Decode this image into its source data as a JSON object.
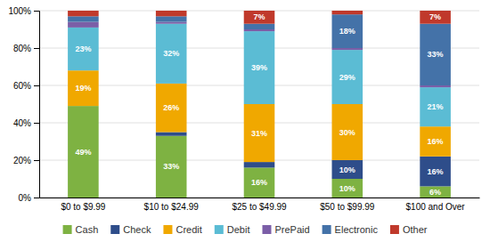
{
  "chart_data": {
    "type": "bar",
    "stacked": true,
    "categories": [
      "$0 to $9.99",
      "$10 to $24.99",
      "$25 to $49.99",
      "$50 to $99.99",
      "$100 and Over"
    ],
    "series": [
      {
        "name": "Cash",
        "color": "#7eb242",
        "values": [
          49,
          33,
          16,
          10,
          6
        ],
        "value_labels": [
          "49%",
          "33%",
          "16%",
          "10%",
          "6%"
        ]
      },
      {
        "name": "Check",
        "color": "#2e4d8a",
        "values": [
          0,
          2,
          3,
          10,
          16
        ],
        "value_labels": [
          null,
          null,
          null,
          "10%",
          "16%"
        ]
      },
      {
        "name": "Credit",
        "color": "#f0a800",
        "values": [
          19,
          26,
          31,
          30,
          16
        ],
        "value_labels": [
          "19%",
          "26%",
          "31%",
          "30%",
          "16%"
        ]
      },
      {
        "name": "Debit",
        "color": "#5bbcd4",
        "values": [
          23,
          32,
          39,
          29,
          21
        ],
        "value_labels": [
          "23%",
          "32%",
          "39%",
          "29%",
          "21%"
        ]
      },
      {
        "name": "PrePaid",
        "color": "#7b5ea7",
        "values": [
          3,
          1,
          1,
          1,
          1
        ],
        "value_labels": [
          null,
          null,
          null,
          null,
          null
        ]
      },
      {
        "name": "Electronic",
        "color": "#4472a8",
        "values": [
          3,
          3,
          3,
          18,
          33
        ],
        "value_labels": [
          null,
          null,
          null,
          "18%",
          "33%"
        ]
      },
      {
        "name": "Other",
        "color": "#c0392b",
        "values": [
          3,
          3,
          7,
          2,
          7
        ],
        "value_labels": [
          null,
          null,
          "7%",
          null,
          "7%"
        ]
      }
    ],
    "ylim": [
      0,
      100
    ],
    "yticks": [
      {
        "value": 0,
        "label": "0%"
      },
      {
        "value": 20,
        "label": "20%"
      },
      {
        "value": 40,
        "label": "40%"
      },
      {
        "value": 60,
        "label": "60%"
      },
      {
        "value": 80,
        "label": "80%"
      },
      {
        "value": 100,
        "label": "100%"
      }
    ],
    "grid": true,
    "data_labels": true,
    "legend": "bottom"
  }
}
